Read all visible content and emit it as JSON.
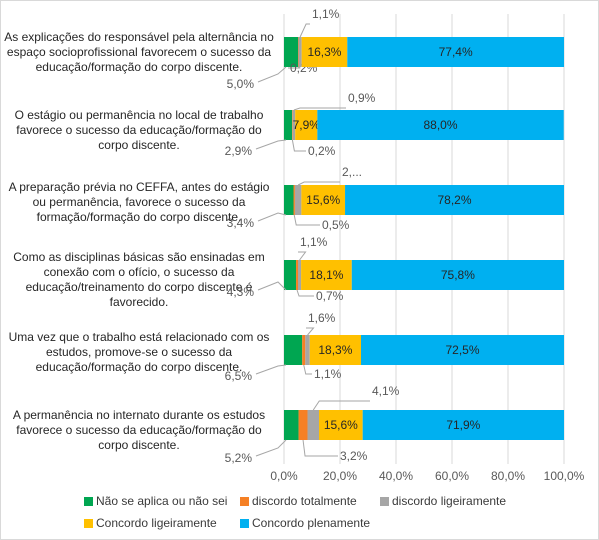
{
  "chart_data": {
    "type": "bar",
    "orientation": "horizontal",
    "stacked": true,
    "categories": [
      "As explicações do responsável pela alternância no espaço socioprofissional favorecem o sucesso da educação/formação do corpo discente.",
      "O estágio ou permanência no local de trabalho favorece o sucesso da educação/formação do corpo discente.",
      "A preparação prévia no CEFFA, antes do estágio ou permanência, favorece o sucesso da formação/formação do corpo discente.",
      "Como as disciplinas básicas são ensinadas em conexão com o ofício, o sucesso da educação/treinamento do corpo discente é favorecido.",
      "Uma vez que o trabalho está relacionado com os estudos, promove-se o sucesso da educação/formação do corpo discente.",
      "A permanência no internato durante os estudos favorece o sucesso da educação/formação do corpo discente."
    ],
    "series": [
      {
        "name": "Não se aplica ou não sei",
        "color": "#00a651",
        "values": [
          5.0,
          2.9,
          3.4,
          4.3,
          6.5,
          5.2
        ],
        "labels": [
          "5,0%",
          "2,9%",
          "3,4%",
          "4,3%",
          "6,5%",
          "5,2%"
        ]
      },
      {
        "name": "discordo totalmente",
        "color": "#f58025",
        "values": [
          0.2,
          0.2,
          0.5,
          0.7,
          1.1,
          3.2
        ],
        "labels": [
          "0,2%",
          "0,2%",
          "0,5%",
          "0,7%",
          "1,1%",
          "3,2%"
        ]
      },
      {
        "name": "discordo ligeiramente",
        "color": "#a6a6a6",
        "values": [
          1.1,
          0.9,
          2.3,
          1.1,
          1.6,
          4.1
        ],
        "labels": [
          "1,1%",
          "0,9%",
          "2,...",
          "1,1%",
          "1,6%",
          "4,1%"
        ]
      },
      {
        "name": "Concordo ligeiramente",
        "color": "#ffc000",
        "values": [
          16.3,
          7.9,
          15.6,
          18.1,
          18.3,
          15.6
        ],
        "labels": [
          "16,3%",
          "7,9%",
          "15,6%",
          "18,1%",
          "18,3%",
          "15,6%"
        ]
      },
      {
        "name": "Concordo plenamente",
        "color": "#00b0f0",
        "values": [
          77.4,
          88.0,
          78.2,
          75.8,
          72.5,
          71.9
        ],
        "labels": [
          "77,4%",
          "88,0%",
          "78,2%",
          "75,8%",
          "72,5%",
          "71,9%"
        ]
      }
    ],
    "xlim": [
      0,
      100
    ],
    "x_ticks": [
      "0,0%",
      "20,0%",
      "40,0%",
      "60,0%",
      "80,0%",
      "100,0%"
    ],
    "grid": true,
    "legend_position": "bottom"
  }
}
